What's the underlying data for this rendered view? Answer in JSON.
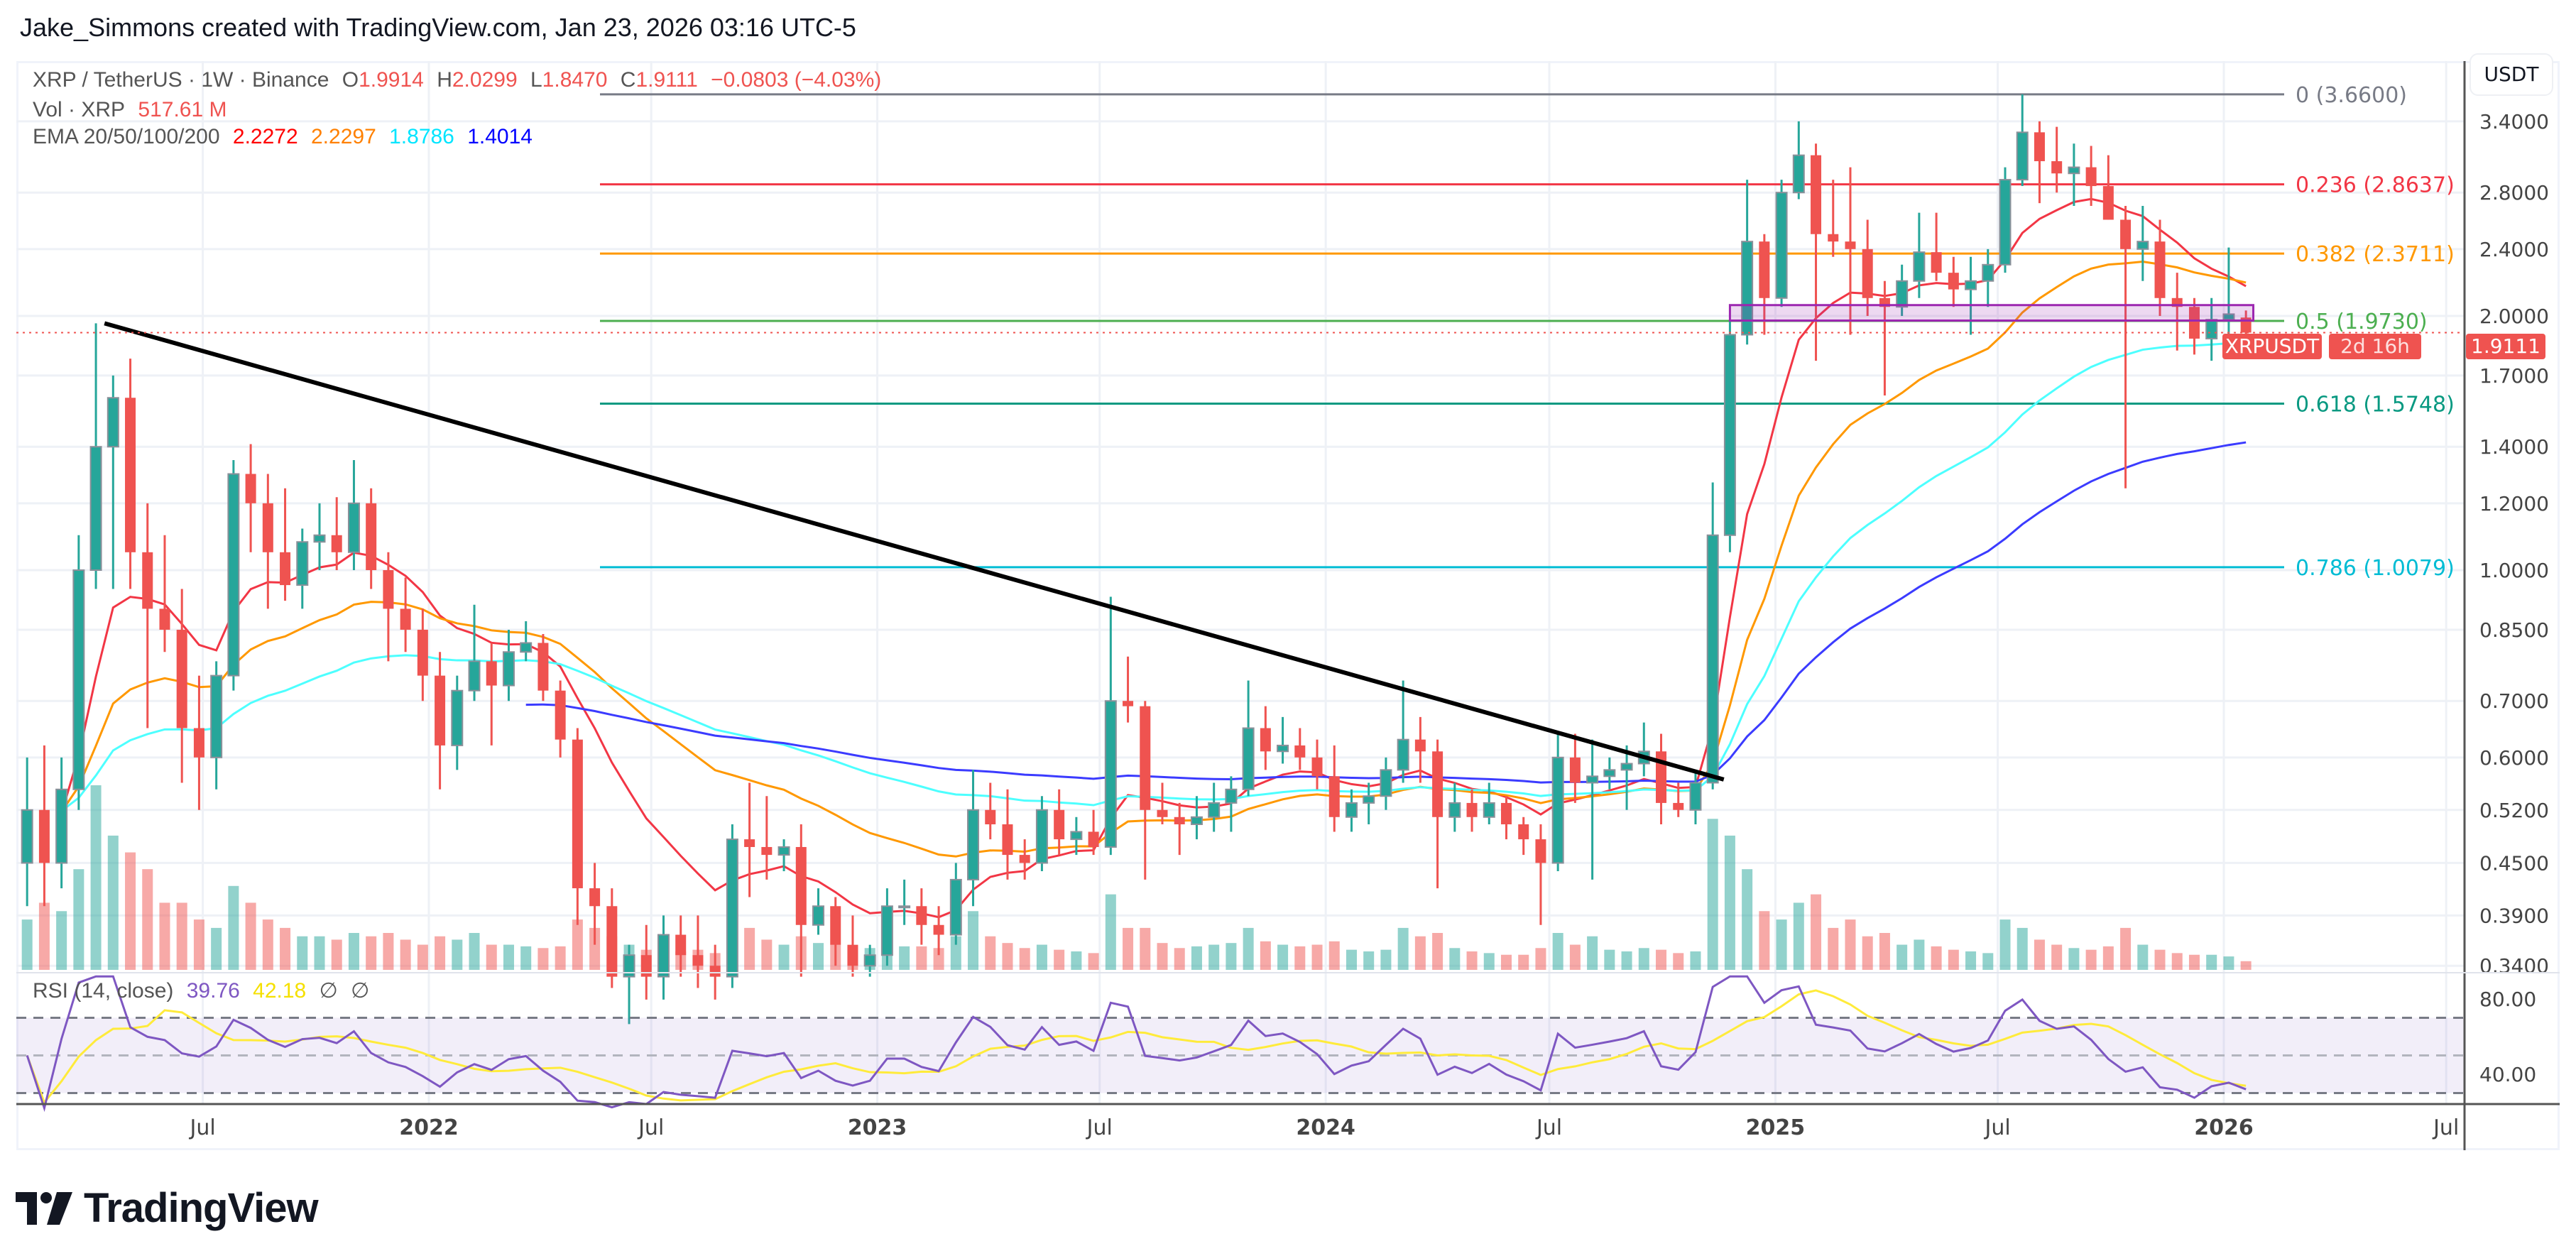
{
  "header": {
    "title": "Jake_Simmons created with TradingView.com, Jan 23, 2026 03:16 UTC-5"
  },
  "legend": {
    "symbol": "XRP / TetherUS · 1W · Binance",
    "o_label": "O",
    "o": "1.9914",
    "h_label": "H",
    "h": "2.0299",
    "l_label": "L",
    "l": "1.8470",
    "c_label": "C",
    "c": "1.9111",
    "change": "−0.0803 (−4.03%)",
    "vol_label": "Vol · XRP",
    "vol": "517.61 M",
    "ema_label": "EMA 20/50/100/200",
    "ema_values": [
      "2.2272",
      "2.2297",
      "1.8786",
      "1.4014"
    ],
    "ema_colors": [
      "#ff0000",
      "#ff8000",
      "#00ffff",
      "#0000ff"
    ]
  },
  "rsi_legend": {
    "label": "RSI (14, close)",
    "rsi": "39.76",
    "ma": "42.18",
    "n1": "∅",
    "n2": "∅"
  },
  "price_axis": {
    "currency": "USDT",
    "ticks": [
      "3.4000",
      "2.8000",
      "2.4000",
      "2.0000",
      "1.7000",
      "1.4000",
      "1.2000",
      "1.0000",
      "0.8500",
      "0.7000",
      "0.6000",
      "0.5200",
      "0.4500",
      "0.3900",
      "0.3400"
    ]
  },
  "rsi_axis": {
    "ticks": [
      "80.00",
      "40.00"
    ]
  },
  "time_axis": {
    "ticks": [
      {
        "label": "Jul",
        "date": "2021-07-01"
      },
      {
        "label": "2022",
        "date": "2022-01-01"
      },
      {
        "label": "Jul",
        "date": "2022-07-01"
      },
      {
        "label": "2023",
        "date": "2023-01-01"
      },
      {
        "label": "Jul",
        "date": "2023-07-01"
      },
      {
        "label": "2024",
        "date": "2024-01-01"
      },
      {
        "label": "Jul",
        "date": "2024-07-01"
      },
      {
        "label": "2025",
        "date": "2025-01-01"
      },
      {
        "label": "Jul",
        "date": "2025-07-01"
      },
      {
        "label": "2026",
        "date": "2026-01-01"
      },
      {
        "label": "Jul",
        "date": "2026-07-01"
      }
    ]
  },
  "price_tag": {
    "symbol": "XRPUSDT",
    "price": "1.9111",
    "countdown": "2d 16h"
  },
  "colors": {
    "up": "#26a69a",
    "down": "#ef5350",
    "rsi": "#7e57c2",
    "rsi_ma": "#ffeb3b",
    "box": "#9c27b0"
  },
  "fib_levels": [
    {
      "label": "0 (3.6600)",
      "price": 3.66,
      "color": "#787b86"
    },
    {
      "label": "0.236 (2.8637)",
      "price": 2.8637,
      "color": "#f23645"
    },
    {
      "label": "0.382 (2.3711)",
      "price": 2.3711,
      "color": "#ff9800"
    },
    {
      "label": "0.5 (1.9730)",
      "price": 1.973,
      "color": "#4caf50"
    },
    {
      "label": "0.618 (1.5748)",
      "price": 1.5748,
      "color": "#089981"
    },
    {
      "label": "0.786 (1.0079)",
      "price": 1.0079,
      "color": "#00bcd4"
    }
  ],
  "chart_data": {
    "type": "candlestick",
    "symbol": "XRP / TetherUS",
    "interval": "1W",
    "y_scale": "log",
    "ylim": [
      0.32,
      3.8
    ],
    "rsi_levels": [
      70,
      50,
      30
    ],
    "trendline": {
      "from": [
        "2021-04-12",
        1.96
      ],
      "to": [
        "2024-11-20",
        0.565
      ]
    },
    "zone": {
      "from": "2024-11-25",
      "to": "2026-01-25",
      "top": 2.06,
      "bottom": 1.975
    },
    "candles_ohlc": [
      [
        "2021-02-08",
        0.45,
        0.6,
        0.4,
        0.52
      ],
      [
        "2021-02-22",
        0.52,
        0.62,
        0.4,
        0.45
      ],
      [
        "2021-03-08",
        0.45,
        0.6,
        0.42,
        0.55
      ],
      [
        "2021-03-22",
        0.55,
        1.1,
        0.52,
        1.0
      ],
      [
        "2021-04-05",
        1.0,
        1.96,
        0.95,
        1.4
      ],
      [
        "2021-04-19",
        1.4,
        1.7,
        0.95,
        1.6
      ],
      [
        "2021-05-03",
        1.6,
        1.78,
        0.95,
        1.05
      ],
      [
        "2021-05-17",
        1.05,
        1.2,
        0.65,
        0.9
      ],
      [
        "2021-05-31",
        0.9,
        1.1,
        0.8,
        0.85
      ],
      [
        "2021-06-14",
        0.85,
        0.95,
        0.56,
        0.65
      ],
      [
        "2021-06-28",
        0.65,
        0.75,
        0.52,
        0.6
      ],
      [
        "2021-07-12",
        0.6,
        0.78,
        0.55,
        0.75
      ],
      [
        "2021-07-26",
        0.75,
        1.35,
        0.72,
        1.3
      ],
      [
        "2021-08-09",
        1.3,
        1.41,
        1.05,
        1.2
      ],
      [
        "2021-08-23",
        1.2,
        1.3,
        0.9,
        1.05
      ],
      [
        "2021-09-06",
        1.05,
        1.25,
        0.92,
        0.96
      ],
      [
        "2021-09-20",
        0.96,
        1.12,
        0.9,
        1.08
      ],
      [
        "2021-10-04",
        1.08,
        1.2,
        1.0,
        1.1
      ],
      [
        "2021-10-18",
        1.1,
        1.22,
        1.0,
        1.05
      ],
      [
        "2021-11-01",
        1.05,
        1.35,
        1.0,
        1.2
      ],
      [
        "2021-11-15",
        1.2,
        1.25,
        0.95,
        1.0
      ],
      [
        "2021-11-29",
        1.0,
        1.05,
        0.78,
        0.9
      ],
      [
        "2021-12-13",
        0.9,
        0.98,
        0.8,
        0.85
      ],
      [
        "2021-12-27",
        0.85,
        0.9,
        0.7,
        0.75
      ],
      [
        "2022-01-10",
        0.75,
        0.8,
        0.55,
        0.62
      ],
      [
        "2022-01-24",
        0.62,
        0.75,
        0.58,
        0.72
      ],
      [
        "2022-02-07",
        0.72,
        0.91,
        0.7,
        0.78
      ],
      [
        "2022-02-21",
        0.78,
        0.82,
        0.62,
        0.73
      ],
      [
        "2022-03-07",
        0.73,
        0.85,
        0.7,
        0.8
      ],
      [
        "2022-03-21",
        0.8,
        0.87,
        0.78,
        0.82
      ],
      [
        "2022-04-04",
        0.82,
        0.84,
        0.7,
        0.72
      ],
      [
        "2022-04-18",
        0.72,
        0.74,
        0.6,
        0.63
      ],
      [
        "2022-05-02",
        0.63,
        0.65,
        0.38,
        0.42
      ],
      [
        "2022-05-16",
        0.42,
        0.45,
        0.36,
        0.4
      ],
      [
        "2022-05-30",
        0.4,
        0.42,
        0.32,
        0.33
      ],
      [
        "2022-06-13",
        0.33,
        0.36,
        0.29,
        0.35
      ],
      [
        "2022-06-27",
        0.35,
        0.38,
        0.31,
        0.33
      ],
      [
        "2022-07-11",
        0.33,
        0.39,
        0.31,
        0.37
      ],
      [
        "2022-07-25",
        0.37,
        0.39,
        0.33,
        0.35
      ],
      [
        "2022-08-08",
        0.35,
        0.39,
        0.32,
        0.34
      ],
      [
        "2022-08-22",
        0.34,
        0.36,
        0.31,
        0.33
      ],
      [
        "2022-09-05",
        0.33,
        0.5,
        0.32,
        0.48
      ],
      [
        "2022-09-19",
        0.48,
        0.56,
        0.41,
        0.47
      ],
      [
        "2022-10-03",
        0.47,
        0.54,
        0.43,
        0.46
      ],
      [
        "2022-10-17",
        0.46,
        0.48,
        0.44,
        0.47
      ],
      [
        "2022-10-31",
        0.47,
        0.5,
        0.33,
        0.38
      ],
      [
        "2022-11-14",
        0.38,
        0.42,
        0.37,
        0.4
      ],
      [
        "2022-11-28",
        0.4,
        0.41,
        0.34,
        0.36
      ],
      [
        "2022-12-12",
        0.36,
        0.39,
        0.33,
        0.34
      ],
      [
        "2022-12-26",
        0.34,
        0.36,
        0.33,
        0.35
      ],
      [
        "2023-01-09",
        0.35,
        0.42,
        0.34,
        0.4
      ],
      [
        "2023-01-23",
        0.4,
        0.43,
        0.38,
        0.4
      ],
      [
        "2023-02-06",
        0.4,
        0.42,
        0.36,
        0.38
      ],
      [
        "2023-02-20",
        0.38,
        0.4,
        0.35,
        0.37
      ],
      [
        "2023-03-06",
        0.37,
        0.45,
        0.36,
        0.43
      ],
      [
        "2023-03-20",
        0.43,
        0.58,
        0.4,
        0.52
      ],
      [
        "2023-04-03",
        0.52,
        0.56,
        0.48,
        0.5
      ],
      [
        "2023-04-17",
        0.5,
        0.55,
        0.43,
        0.46
      ],
      [
        "2023-05-01",
        0.46,
        0.48,
        0.43,
        0.45
      ],
      [
        "2023-05-15",
        0.45,
        0.54,
        0.44,
        0.52
      ],
      [
        "2023-05-29",
        0.52,
        0.55,
        0.46,
        0.48
      ],
      [
        "2023-06-12",
        0.48,
        0.51,
        0.46,
        0.49
      ],
      [
        "2023-06-26",
        0.49,
        0.52,
        0.46,
        0.47
      ],
      [
        "2023-07-10",
        0.47,
        0.93,
        0.46,
        0.7
      ],
      [
        "2023-07-24",
        0.7,
        0.79,
        0.66,
        0.69
      ],
      [
        "2023-08-07",
        0.69,
        0.7,
        0.43,
        0.52
      ],
      [
        "2023-08-21",
        0.52,
        0.56,
        0.5,
        0.51
      ],
      [
        "2023-09-04",
        0.51,
        0.53,
        0.46,
        0.5
      ],
      [
        "2023-09-18",
        0.5,
        0.54,
        0.48,
        0.51
      ],
      [
        "2023-10-02",
        0.51,
        0.56,
        0.49,
        0.53
      ],
      [
        "2023-10-16",
        0.53,
        0.57,
        0.49,
        0.55
      ],
      [
        "2023-10-30",
        0.55,
        0.74,
        0.54,
        0.65
      ],
      [
        "2023-11-13",
        0.65,
        0.69,
        0.58,
        0.61
      ],
      [
        "2023-11-27",
        0.61,
        0.67,
        0.59,
        0.62
      ],
      [
        "2023-12-11",
        0.62,
        0.65,
        0.58,
        0.6
      ],
      [
        "2023-12-25",
        0.6,
        0.63,
        0.55,
        0.57
      ],
      [
        "2024-01-08",
        0.57,
        0.62,
        0.49,
        0.51
      ],
      [
        "2024-01-22",
        0.51,
        0.55,
        0.49,
        0.53
      ],
      [
        "2024-02-05",
        0.53,
        0.56,
        0.5,
        0.54
      ],
      [
        "2024-02-19",
        0.54,
        0.6,
        0.52,
        0.58
      ],
      [
        "2024-03-04",
        0.58,
        0.74,
        0.56,
        0.63
      ],
      [
        "2024-03-18",
        0.63,
        0.67,
        0.56,
        0.61
      ],
      [
        "2024-04-01",
        0.61,
        0.63,
        0.42,
        0.51
      ],
      [
        "2024-04-15",
        0.51,
        0.56,
        0.49,
        0.53
      ],
      [
        "2024-04-29",
        0.53,
        0.55,
        0.49,
        0.51
      ],
      [
        "2024-05-13",
        0.51,
        0.56,
        0.5,
        0.53
      ],
      [
        "2024-05-27",
        0.53,
        0.54,
        0.48,
        0.5
      ],
      [
        "2024-06-10",
        0.5,
        0.51,
        0.46,
        0.48
      ],
      [
        "2024-06-24",
        0.48,
        0.5,
        0.38,
        0.45
      ],
      [
        "2024-07-08",
        0.45,
        0.64,
        0.44,
        0.6
      ],
      [
        "2024-07-22",
        0.6,
        0.64,
        0.53,
        0.56
      ],
      [
        "2024-08-05",
        0.56,
        0.63,
        0.43,
        0.57
      ],
      [
        "2024-08-19",
        0.57,
        0.6,
        0.55,
        0.58
      ],
      [
        "2024-09-02",
        0.58,
        0.62,
        0.52,
        0.59
      ],
      [
        "2024-09-16",
        0.59,
        0.66,
        0.57,
        0.61
      ],
      [
        "2024-09-30",
        0.61,
        0.64,
        0.5,
        0.53
      ],
      [
        "2024-10-14",
        0.53,
        0.56,
        0.51,
        0.52
      ],
      [
        "2024-10-28",
        0.52,
        0.58,
        0.5,
        0.56
      ],
      [
        "2024-11-11",
        0.56,
        1.27,
        0.55,
        1.1
      ],
      [
        "2024-11-25",
        1.1,
        1.98,
        1.05,
        1.9
      ],
      [
        "2024-12-09",
        1.9,
        2.9,
        1.85,
        2.45
      ],
      [
        "2024-12-23",
        2.45,
        2.5,
        1.9,
        2.1
      ],
      [
        "2025-01-06",
        2.1,
        2.9,
        2.05,
        2.8
      ],
      [
        "2025-01-20",
        2.8,
        3.4,
        2.75,
        3.1
      ],
      [
        "2025-02-03",
        3.1,
        3.2,
        1.77,
        2.5
      ],
      [
        "2025-02-17",
        2.5,
        2.9,
        2.35,
        2.45
      ],
      [
        "2025-03-03",
        2.45,
        3.0,
        1.9,
        2.4
      ],
      [
        "2025-03-17",
        2.4,
        2.6,
        2.0,
        2.1
      ],
      [
        "2025-03-31",
        2.1,
        2.2,
        1.61,
        2.05
      ],
      [
        "2025-04-14",
        2.05,
        2.3,
        2.0,
        2.2
      ],
      [
        "2025-04-28",
        2.2,
        2.65,
        2.1,
        2.38
      ],
      [
        "2025-05-12",
        2.38,
        2.65,
        2.2,
        2.25
      ],
      [
        "2025-05-26",
        2.25,
        2.35,
        2.05,
        2.15
      ],
      [
        "2025-06-09",
        2.15,
        2.35,
        1.9,
        2.2
      ],
      [
        "2025-06-23",
        2.2,
        2.4,
        2.05,
        2.3
      ],
      [
        "2025-07-07",
        2.3,
        3.0,
        2.25,
        2.9
      ],
      [
        "2025-07-21",
        2.9,
        3.66,
        2.85,
        3.3
      ],
      [
        "2025-08-04",
        3.3,
        3.4,
        2.72,
        3.05
      ],
      [
        "2025-08-18",
        3.05,
        3.35,
        2.8,
        2.95
      ],
      [
        "2025-09-01",
        2.95,
        3.2,
        2.7,
        3.0
      ],
      [
        "2025-09-15",
        3.0,
        3.18,
        2.7,
        2.85
      ],
      [
        "2025-09-29",
        2.85,
        3.1,
        2.6,
        2.6
      ],
      [
        "2025-10-13",
        2.6,
        2.7,
        1.25,
        2.4
      ],
      [
        "2025-10-27",
        2.4,
        2.7,
        2.2,
        2.45
      ],
      [
        "2025-11-10",
        2.45,
        2.6,
        2.0,
        2.1
      ],
      [
        "2025-11-24",
        2.1,
        2.25,
        1.82,
        2.05
      ],
      [
        "2025-12-08",
        2.05,
        2.1,
        1.8,
        1.88
      ],
      [
        "2025-12-22",
        1.88,
        2.1,
        1.77,
        1.98
      ],
      [
        "2026-01-05",
        1.98,
        2.41,
        1.9,
        2.01
      ],
      [
        "2026-01-19",
        1.9914,
        2.0299,
        1.847,
        1.9111
      ]
    ],
    "volume_millions": [
      3000,
      4000,
      3500,
      6000,
      11000,
      8000,
      7000,
      6000,
      4000,
      4000,
      3000,
      2500,
      5000,
      4000,
      3000,
      2500,
      2000,
      2000,
      1800,
      2200,
      2000,
      2200,
      1800,
      1500,
      2000,
      1800,
      2200,
      1500,
      1500,
      1400,
      1300,
      1400,
      3000,
      2500,
      2000,
      1500,
      1200,
      1300,
      1100,
      1200,
      1000,
      2200,
      2500,
      1800,
      1500,
      2000,
      1600,
      1500,
      1400,
      1300,
      1500,
      1400,
      1400,
      1300,
      2000,
      3500,
      2000,
      1600,
      1300,
      1500,
      1200,
      1100,
      1000,
      4500,
      2500,
      2500,
      1600,
      1300,
      1400,
      1500,
      1600,
      2500,
      1700,
      1500,
      1400,
      1500,
      1700,
      1200,
      1100,
      1200,
      2500,
      2000,
      2200,
      1300,
      1100,
      1000,
      900,
      900,
      1300,
      2200,
      1500,
      2000,
      1200,
      1100,
      1300,
      1200,
      1000,
      1100,
      9000,
      8000,
      6000,
      3500,
      3000,
      4000,
      4500,
      2500,
      3000,
      2000,
      2200,
      1500,
      1800,
      1400,
      1200,
      1100,
      1000,
      3000,
      2500,
      1800,
      1500,
      1300,
      1200,
      1400,
      2500,
      1500,
      1200,
      1000,
      900,
      900,
      800,
      517.61
    ]
  },
  "logo": {
    "text": "TradingView"
  }
}
